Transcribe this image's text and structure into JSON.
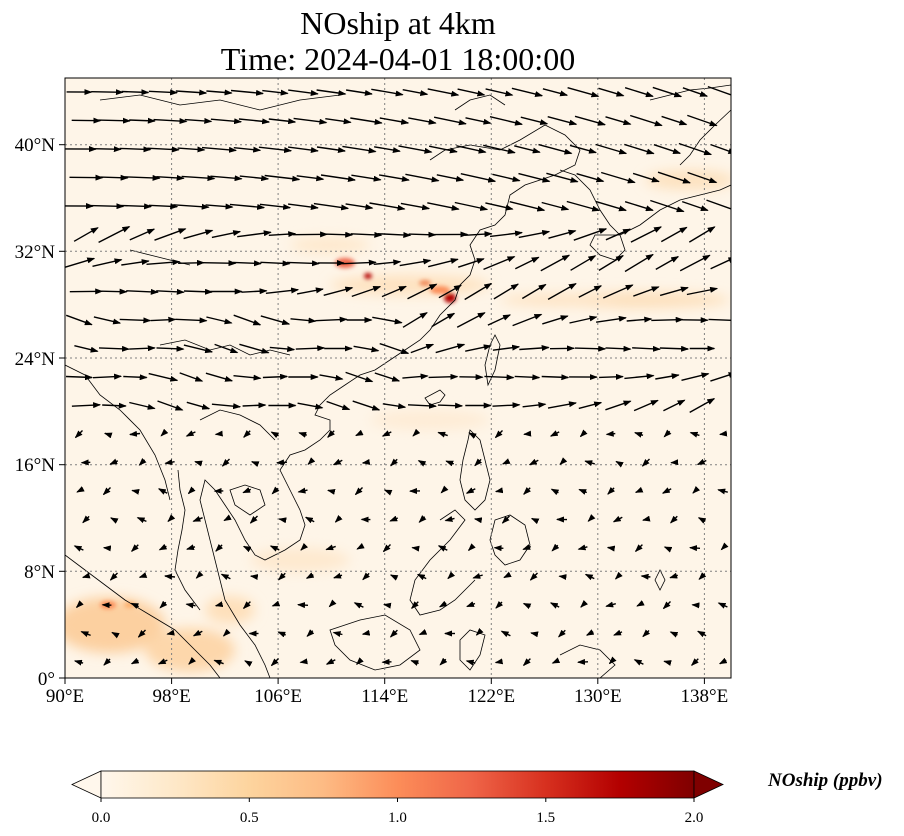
{
  "title_line1": "NOship at 4km",
  "title_line2": "Time: 2024-04-01 18:00:00",
  "map": {
    "extent": {
      "lon": [
        90,
        140
      ],
      "lat": [
        0,
        45
      ]
    },
    "lon_ticks": [
      "90°E",
      "98°E",
      "106°E",
      "114°E",
      "122°E",
      "130°E",
      "138°E"
    ],
    "lon_tick_values": [
      90,
      98,
      106,
      114,
      122,
      130,
      138
    ],
    "lat_ticks": [
      "0°",
      "8°N",
      "16°N",
      "24°N",
      "32°N",
      "40°N"
    ],
    "lat_tick_values": [
      0,
      8,
      16,
      24,
      32,
      40
    ],
    "gridlines": true,
    "field": "NOship",
    "overlay": "wind vectors"
  },
  "colorbar": {
    "label": "NOship (ppbv)",
    "ticks": [
      "0.0",
      "0.5",
      "1.0",
      "1.5",
      "2.0"
    ],
    "tick_values": [
      0.0,
      0.5,
      1.0,
      1.5,
      2.0
    ],
    "range": [
      0.0,
      2.0
    ],
    "colormap": "OrRd",
    "colors": [
      "#fff7ec",
      "#fee8c8",
      "#fdd49e",
      "#fdbb84",
      "#fc8d59",
      "#ef6548",
      "#d7301f",
      "#b30000",
      "#7f0000"
    ]
  }
}
